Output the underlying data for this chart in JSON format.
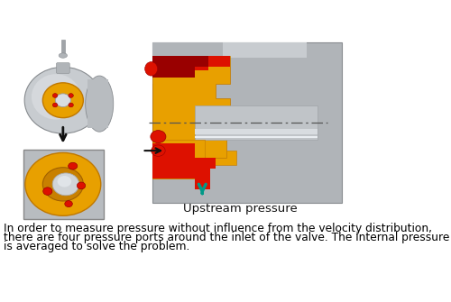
{
  "body_text_line1": "In order to measure pressure without influence from the velocity distribution,",
  "body_text_line2": "there are four pressure ports around the inlet of the valve. The internal pressure",
  "body_text_line3": "is averaged to solve the problem.",
  "upstream_label": "Upstream pressure",
  "bg_color": "#ffffff",
  "text_color": "#000000",
  "gray_body": "#b0b4b8",
  "gray_light": "#c0c4c8",
  "gray_mid": "#a0a4a8",
  "gray_dark": "#888c90",
  "yellow_main": "#e8a000",
  "yellow_dark": "#c88000",
  "red_bright": "#dd1100",
  "red_dark": "#990000",
  "teal_arrow": "#009988",
  "black": "#111111",
  "body_fontsize": 8.8,
  "label_fontsize": 9.5
}
